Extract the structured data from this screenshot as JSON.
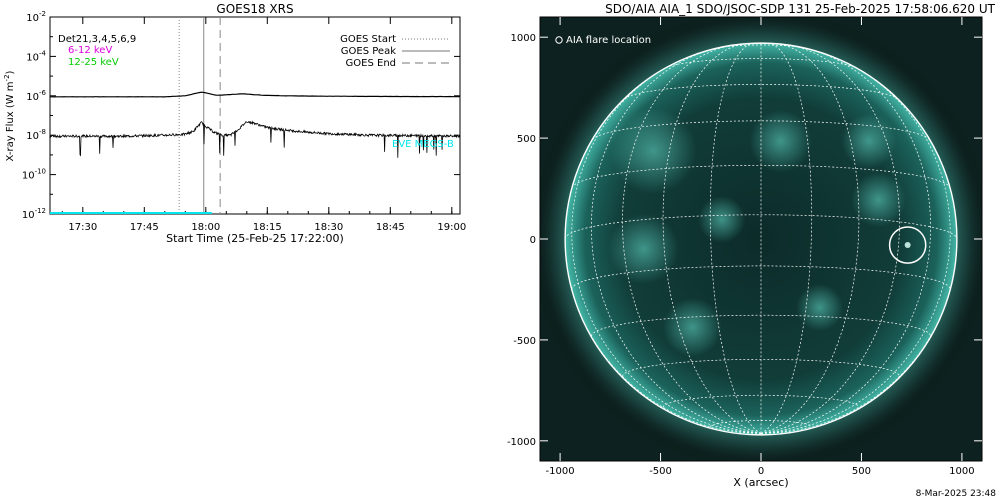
{
  "chart_data": [
    {
      "type": "line",
      "title": "GOES18 XRS",
      "xlabel": "Start Time (25-Feb-25 17:22:00)",
      "ylabel_main": "X-ray Flux (W m",
      "ylabel_sup": "-2",
      "ylabel_end": ")",
      "x_ticks": [
        "17:30",
        "17:45",
        "18:00",
        "18:15",
        "18:30",
        "18:45",
        "19:00"
      ],
      "x_tick_minutes": [
        30,
        45,
        60,
        75,
        90,
        105,
        120
      ],
      "xlim_minutes": [
        22,
        122
      ],
      "y_log": true,
      "ylim_exp": [
        -12,
        -2
      ],
      "y_ticks": [
        {
          "base": "10",
          "exp": "-2"
        },
        {
          "base": "10",
          "exp": "-4"
        },
        {
          "base": "10",
          "exp": "-6"
        },
        {
          "base": "10",
          "exp": "-8"
        },
        {
          "base": "10",
          "exp": "-10"
        },
        {
          "base": "10",
          "exp": "-12"
        }
      ],
      "y_tick_exps": [
        -2,
        -4,
        -6,
        -8,
        -10,
        -12
      ],
      "channel_labels": [
        {
          "text": "Det21,3,4,5,6,9",
          "color": "#000000"
        },
        {
          "text": "6-12 keV",
          "color": "#dd00dd"
        },
        {
          "text": "12-25 keV",
          "color": "#00cc00"
        }
      ],
      "legend": [
        {
          "text": "GOES Start",
          "style": "dotted"
        },
        {
          "text": "GOES Peak",
          "style": "solid"
        },
        {
          "text": "GOES End",
          "style": "dashed"
        }
      ],
      "event_lines_minutes": {
        "start": 53.5,
        "peak": 59.5,
        "end": 63.5
      },
      "eve_label": "EVE MEGS-B",
      "eve_color": "#00e5ee",
      "series": [
        {
          "name": "long",
          "x": [
            22,
            40,
            50,
            55,
            57,
            58,
            59,
            60,
            61,
            62,
            63,
            65,
            67,
            69,
            71,
            73,
            75,
            80,
            90,
            100,
            110,
            122
          ],
          "y_exp": [
            -6.05,
            -6.05,
            -6.05,
            -6.0,
            -5.9,
            -5.85,
            -5.82,
            -5.85,
            -5.9,
            -5.95,
            -5.97,
            -5.95,
            -5.92,
            -5.9,
            -5.93,
            -5.96,
            -5.98,
            -6.0,
            -6.02,
            -6.03,
            -6.04,
            -6.04
          ]
        },
        {
          "name": "short",
          "x": [
            22,
            30,
            40,
            50,
            55,
            57,
            58,
            59,
            60,
            62,
            64,
            66,
            68,
            70,
            72,
            74,
            76,
            80,
            85,
            90,
            100,
            110,
            122
          ],
          "y_exp": [
            -8.05,
            -8.05,
            -8.05,
            -8.0,
            -7.95,
            -7.8,
            -7.55,
            -7.35,
            -7.55,
            -7.85,
            -8.0,
            -8.0,
            -7.7,
            -7.3,
            -7.4,
            -7.55,
            -7.65,
            -7.75,
            -7.85,
            -7.92,
            -8.0,
            -8.02,
            -8.05
          ]
        }
      ]
    },
    {
      "type": "scatter",
      "title": "SDO/AIA AIA_1 SDO/JSOC-SDP 131 25-Feb-2025 17:58:06.620 UT",
      "xlabel": "X (arcsec)",
      "x_ticks": [
        "-1000",
        "-500",
        "0",
        "500",
        "1000"
      ],
      "y_ticks": [
        "1000",
        "500",
        "0",
        "-500",
        "-1000"
      ],
      "tick_values": [
        -1000,
        -500,
        0,
        500,
        1000
      ],
      "xlim": [
        -1100,
        1100
      ],
      "ylim": [
        -1100,
        1100
      ],
      "solar_radius_arcsec": 975,
      "legend_label": "AIA flare location",
      "flare_location_arcsec": {
        "x": 730,
        "y": -30,
        "r": 90
      },
      "disk_color": "#1f6e66",
      "grid_color": "#ffffff"
    }
  ],
  "footer_timestamp": "8-Mar-2025 23:48"
}
